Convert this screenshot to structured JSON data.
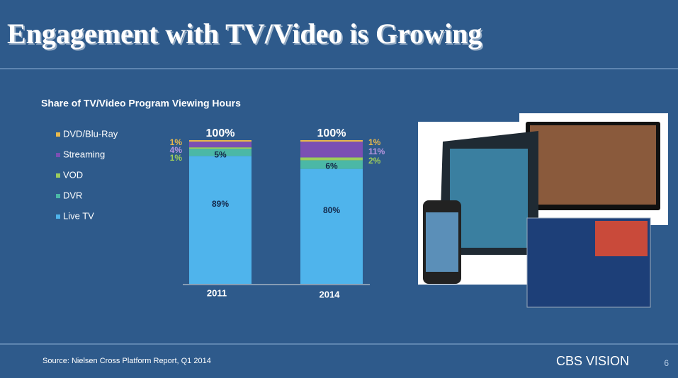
{
  "slide": {
    "title": "Engagement with TV/Video is Growing",
    "source": "Source: Nielsen Cross Platform Report, Q1 2014",
    "logo": "CBS VISION",
    "page": "6"
  },
  "chart_data": {
    "type": "stacked-bar",
    "title": "Share of TV/Video Program Viewing Hours",
    "categories": [
      "2011",
      "2014"
    ],
    "series": [
      {
        "name": "Live TV",
        "color": "#4fb4ec",
        "values": [
          89,
          80
        ],
        "value_labels": [
          "89%",
          "80%"
        ]
      },
      {
        "name": "DVR",
        "color": "#4bb8a6",
        "values": [
          5,
          6
        ],
        "value_labels": [
          "5%",
          "6%"
        ]
      },
      {
        "name": "VOD",
        "color": "#9ccc5c",
        "values": [
          1,
          2
        ],
        "value_labels": [
          "1%",
          "2%"
        ]
      },
      {
        "name": "Streaming",
        "color": "#7b4fb3",
        "values": [
          4,
          11
        ],
        "value_labels": [
          "4%",
          "11%"
        ]
      },
      {
        "name": "DVD/Blu-Ray",
        "color": "#e9b94c",
        "values": [
          1,
          1
        ],
        "value_labels": [
          "1%",
          "1%"
        ]
      }
    ],
    "totals": [
      100,
      100
    ],
    "total_labels": [
      "100%",
      "100%"
    ],
    "ylim": [
      0,
      100
    ]
  }
}
